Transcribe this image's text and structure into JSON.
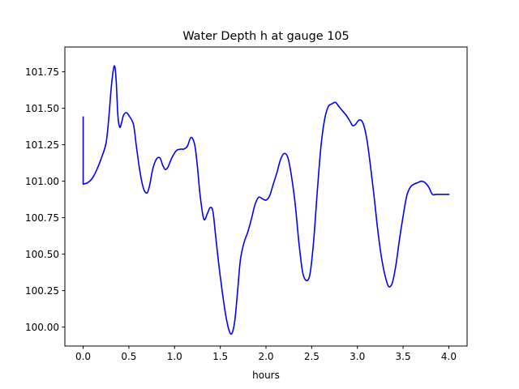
{
  "chart_data": {
    "type": "line",
    "title": "Water Depth h at gauge 105",
    "xlabel": "hours",
    "ylabel": "",
    "xlim": [
      -0.2,
      4.2
    ],
    "ylim": [
      99.87,
      101.92
    ],
    "xticks": [
      {
        "value": 0.0,
        "label": "0.0"
      },
      {
        "value": 0.5,
        "label": "0.5"
      },
      {
        "value": 1.0,
        "label": "1.0"
      },
      {
        "value": 1.5,
        "label": "1.5"
      },
      {
        "value": 2.0,
        "label": "2.0"
      },
      {
        "value": 2.5,
        "label": "2.5"
      },
      {
        "value": 3.0,
        "label": "3.0"
      },
      {
        "value": 3.5,
        "label": "3.5"
      },
      {
        "value": 4.0,
        "label": "4.0"
      }
    ],
    "yticks": [
      {
        "value": 100.0,
        "label": "100.00"
      },
      {
        "value": 100.25,
        "label": "100.25"
      },
      {
        "value": 100.5,
        "label": "100.50"
      },
      {
        "value": 100.75,
        "label": "100.75"
      },
      {
        "value": 101.0,
        "label": "101.00"
      },
      {
        "value": 101.25,
        "label": "101.25"
      },
      {
        "value": 101.5,
        "label": "101.50"
      },
      {
        "value": 101.75,
        "label": "101.75"
      }
    ],
    "grid": false,
    "series": [
      {
        "color": "#0000ff",
        "x": [
          0.0,
          0.0,
          0.05,
          0.1,
          0.15,
          0.2,
          0.25,
          0.28,
          0.31,
          0.34,
          0.36,
          0.38,
          0.4,
          0.42,
          0.44,
          0.47,
          0.5,
          0.55,
          0.58,
          0.62,
          0.66,
          0.7,
          0.73,
          0.76,
          0.8,
          0.84,
          0.87,
          0.9,
          0.93,
          0.97,
          1.02,
          1.07,
          1.1,
          1.14,
          1.18,
          1.22,
          1.25,
          1.28,
          1.32,
          1.36,
          1.39,
          1.42,
          1.45,
          1.48,
          1.52,
          1.56,
          1.6,
          1.63,
          1.66,
          1.69,
          1.72,
          1.76,
          1.8,
          1.84,
          1.88,
          1.92,
          1.96,
          2.0,
          2.04,
          2.08,
          2.12,
          2.16,
          2.2,
          2.24,
          2.28,
          2.32,
          2.36,
          2.4,
          2.44,
          2.48,
          2.52,
          2.56,
          2.6,
          2.64,
          2.68,
          2.72,
          2.76,
          2.8,
          2.84,
          2.88,
          2.92,
          2.95,
          2.98,
          3.02,
          3.06,
          3.1,
          3.14,
          3.18,
          3.22,
          3.26,
          3.3,
          3.34,
          3.38,
          3.42,
          3.46,
          3.5,
          3.54,
          3.58,
          3.62,
          3.66,
          3.7,
          3.74,
          3.78,
          3.82,
          3.86,
          3.9,
          3.94,
          4.0
        ],
        "values": [
          101.44,
          100.98,
          100.99,
          101.02,
          101.08,
          101.16,
          101.26,
          101.43,
          101.66,
          101.79,
          101.7,
          101.45,
          101.37,
          101.4,
          101.45,
          101.47,
          101.45,
          101.39,
          101.25,
          101.07,
          100.95,
          100.92,
          100.98,
          101.08,
          101.15,
          101.16,
          101.11,
          101.08,
          101.1,
          101.16,
          101.21,
          101.22,
          101.22,
          101.24,
          101.3,
          101.25,
          101.1,
          100.9,
          100.74,
          100.78,
          100.82,
          100.79,
          100.62,
          100.45,
          100.25,
          100.08,
          99.97,
          99.96,
          100.05,
          100.25,
          100.46,
          100.58,
          100.65,
          100.74,
          100.84,
          100.89,
          100.88,
          100.87,
          100.9,
          100.98,
          101.06,
          101.15,
          101.19,
          101.16,
          101.03,
          100.84,
          100.58,
          100.38,
          100.32,
          100.36,
          100.58,
          100.92,
          101.23,
          101.42,
          101.51,
          101.53,
          101.54,
          101.51,
          101.48,
          101.45,
          101.41,
          101.38,
          101.39,
          101.42,
          101.4,
          101.3,
          101.12,
          100.91,
          100.68,
          100.49,
          100.36,
          100.28,
          100.3,
          100.42,
          100.6,
          100.76,
          100.9,
          100.96,
          100.98,
          100.99,
          101.0,
          100.99,
          100.96,
          100.91,
          100.91,
          100.91,
          100.91,
          100.91
        ]
      }
    ]
  }
}
